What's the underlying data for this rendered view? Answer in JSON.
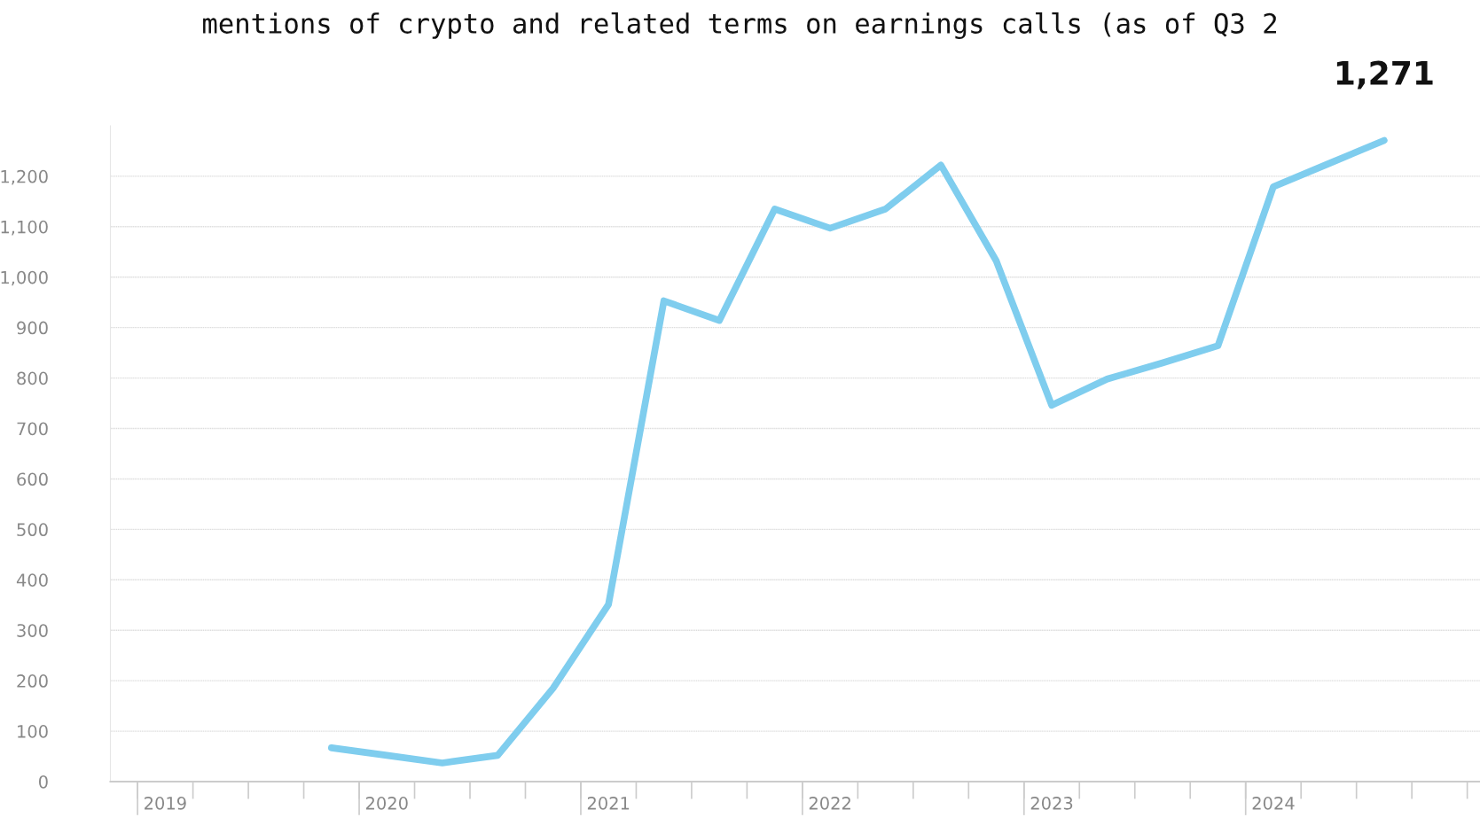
{
  "chart_data": {
    "type": "line",
    "title": "mentions of crypto and related terms on earnings calls (as of Q3 2",
    "categories": [
      "2019",
      null,
      null,
      null,
      "2020",
      null,
      null,
      null,
      "2021",
      null,
      null,
      null,
      "2022",
      null,
      null,
      null,
      "2023",
      null,
      null,
      null,
      "2024",
      null,
      null,
      null
    ],
    "series": [
      {
        "color": "#7fcdee",
        "values": [
          null,
          null,
          null,
          67,
          52,
          37,
          52,
          185,
          351,
          953,
          914,
          1135,
          1097,
          1135,
          1222,
          1032,
          746,
          798,
          830,
          864,
          1179,
          1225,
          1271,
          null
        ]
      }
    ],
    "ylim": [
      0,
      1300
    ],
    "yticks": [
      0,
      100,
      200,
      300,
      400,
      500,
      600,
      700,
      800,
      900,
      {
        "value": 1000,
        "label": "1,000"
      },
      {
        "value": 1100,
        "label": "1,100"
      },
      {
        "value": 1200,
        "label": "1,200"
      }
    ],
    "grid": "y",
    "marker": "none",
    "line_style": "solid",
    "annotations": [
      {
        "text": "1,271",
        "y": 1271
      }
    ]
  }
}
